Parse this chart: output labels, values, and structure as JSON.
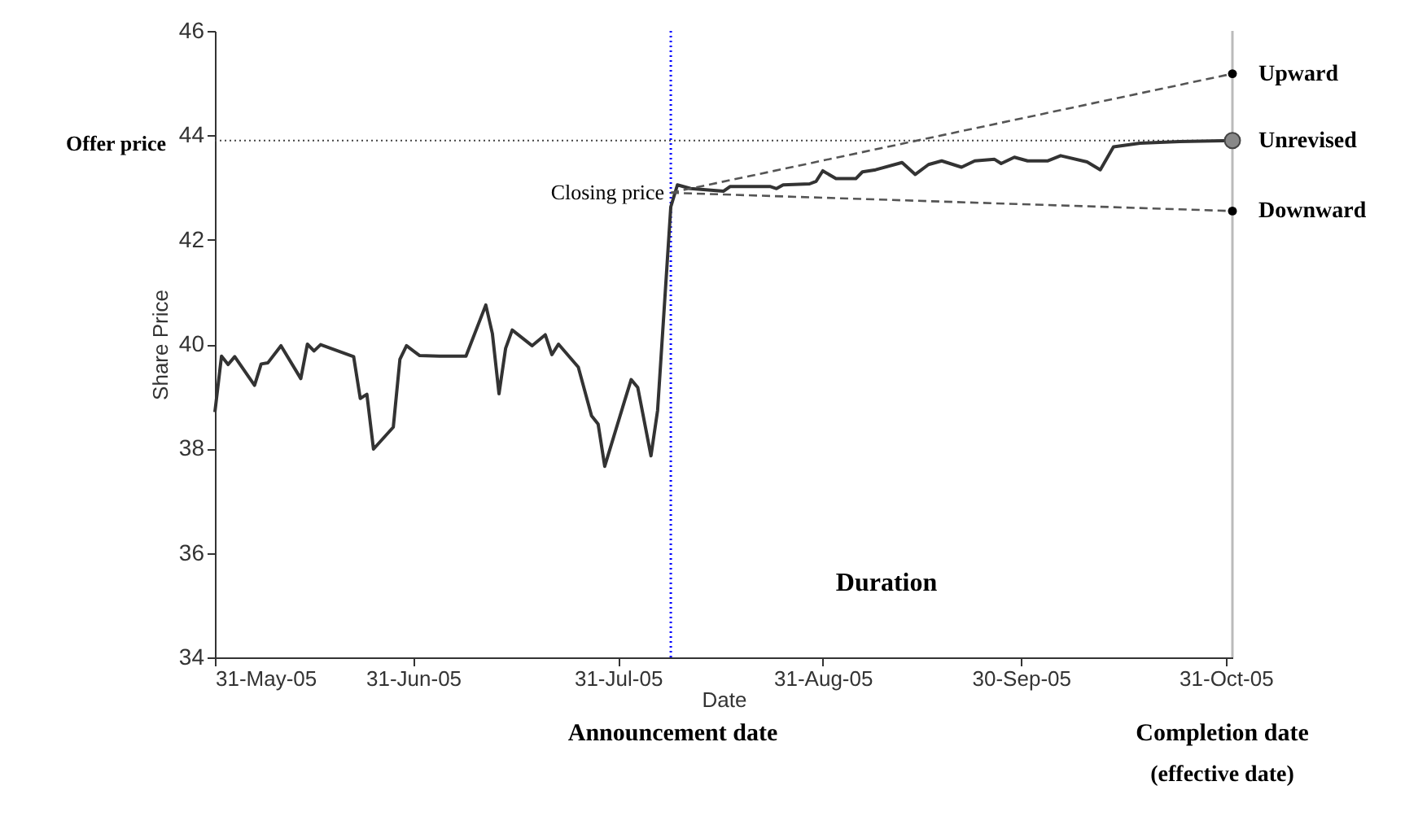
{
  "chart_data": {
    "type": "line",
    "xlabel": "Date",
    "ylabel": "Share Price",
    "xlim": [
      "2005-05-31",
      "2005-11-01"
    ],
    "ylim": [
      34,
      46
    ],
    "xticks": [
      {
        "value": "2005-05-31",
        "label": "31-May-05"
      },
      {
        "value": "2005-06-30",
        "label": "31-Jun-05"
      },
      {
        "value": "2005-07-31",
        "label": "31-Jul-05"
      },
      {
        "value": "2005-08-31",
        "label": "31-Aug-05"
      },
      {
        "value": "2005-09-30",
        "label": "30-Sep-05"
      },
      {
        "value": "2005-10-31",
        "label": "31-Oct-05"
      }
    ],
    "yticks": [
      34,
      36,
      38,
      40,
      42,
      44,
      46
    ],
    "series": [
      {
        "color": "#333333",
        "line_style": "solid",
        "marker": "none",
        "x": [
          "2005-05-31",
          "2005-06-01",
          "2005-06-02",
          "2005-06-03",
          "2005-06-06",
          "2005-06-07",
          "2005-06-08",
          "2005-06-10",
          "2005-06-13",
          "2005-06-14",
          "2005-06-15",
          "2005-06-16",
          "2005-06-21",
          "2005-06-22",
          "2005-06-23",
          "2005-06-24",
          "2005-06-27",
          "2005-06-28",
          "2005-06-29",
          "2005-07-01",
          "2005-07-04",
          "2005-07-08",
          "2005-07-11",
          "2005-07-12",
          "2005-07-13",
          "2005-07-14",
          "2005-07-15",
          "2005-07-18",
          "2005-07-20",
          "2005-07-21",
          "2005-07-22",
          "2005-07-25",
          "2005-07-27",
          "2005-07-28",
          "2005-07-29",
          "2005-08-01",
          "2005-08-02",
          "2005-08-03",
          "2005-08-05",
          "2005-08-06",
          "2005-08-08",
          "2005-08-09",
          "2005-08-11",
          "2005-08-16",
          "2005-08-17",
          "2005-08-23",
          "2005-08-24",
          "2005-08-25",
          "2005-08-29",
          "2005-08-30",
          "2005-08-31",
          "2005-09-02",
          "2005-09-05",
          "2005-09-06",
          "2005-09-08",
          "2005-09-12",
          "2005-09-14",
          "2005-09-16",
          "2005-09-18",
          "2005-09-21",
          "2005-09-23",
          "2005-09-26",
          "2005-09-27",
          "2005-09-29",
          "2005-10-01",
          "2005-10-04",
          "2005-10-06",
          "2005-10-10",
          "2005-10-12",
          "2005-10-14",
          "2005-10-18",
          "2005-10-24",
          "2005-11-01"
        ],
        "values": [
          38.7,
          39.77,
          39.61,
          39.76,
          39.21,
          39.62,
          39.64,
          39.97,
          39.34,
          40.0,
          39.87,
          39.99,
          39.76,
          38.96,
          39.04,
          37.99,
          38.41,
          39.71,
          39.97,
          39.78,
          39.77,
          39.77,
          40.75,
          40.2,
          39.05,
          39.92,
          40.27,
          39.97,
          40.18,
          39.8,
          40.0,
          39.56,
          38.63,
          38.47,
          37.66,
          38.91,
          39.32,
          39.17,
          37.86,
          38.73,
          42.63,
          43.05,
          42.98,
          42.93,
          43.02,
          43.02,
          42.98,
          43.05,
          43.07,
          43.12,
          43.32,
          43.17,
          43.17,
          43.3,
          43.34,
          43.48,
          43.25,
          43.44,
          43.51,
          43.39,
          43.51,
          43.54,
          43.46,
          43.58,
          43.51,
          43.51,
          43.61,
          43.49,
          43.34,
          43.78,
          43.85,
          43.88,
          43.9
        ]
      },
      {
        "name": "Upward",
        "color": "#555555",
        "line_style": "dashed",
        "marker": "circle",
        "x": [
          "2005-08-08",
          "2005-11-01"
        ],
        "values": [
          42.9,
          45.18
        ]
      },
      {
        "type": "scatter",
        "name": "Unrevised",
        "color": "#888888",
        "marker": "circle",
        "x": [
          "2005-11-01"
        ],
        "values": [
          43.9
        ]
      },
      {
        "name": "Downward",
        "color": "#555555",
        "line_style": "dashed",
        "marker": "circle",
        "x": [
          "2005-08-08",
          "2005-11-01"
        ],
        "values": [
          42.9,
          42.55
        ]
      }
    ],
    "ref_lines": [
      {
        "axis": "y",
        "value": 43.9,
        "label": "Offer price",
        "color": "#444444",
        "line_style": "dotted"
      },
      {
        "axis": "x",
        "value": "2005-08-08",
        "label": null,
        "color": "#0000ff",
        "line_style": "dotted"
      },
      {
        "axis": "x",
        "value": "2005-11-01",
        "label": null,
        "color": "#bbbbbb",
        "line_style": "solid"
      }
    ],
    "annotations": [
      {
        "text": "Closing price",
        "x": "2005-08-08",
        "y": 42.9
      },
      "Duration",
      "Announcement date",
      "Completion date",
      "(effective date)"
    ]
  }
}
